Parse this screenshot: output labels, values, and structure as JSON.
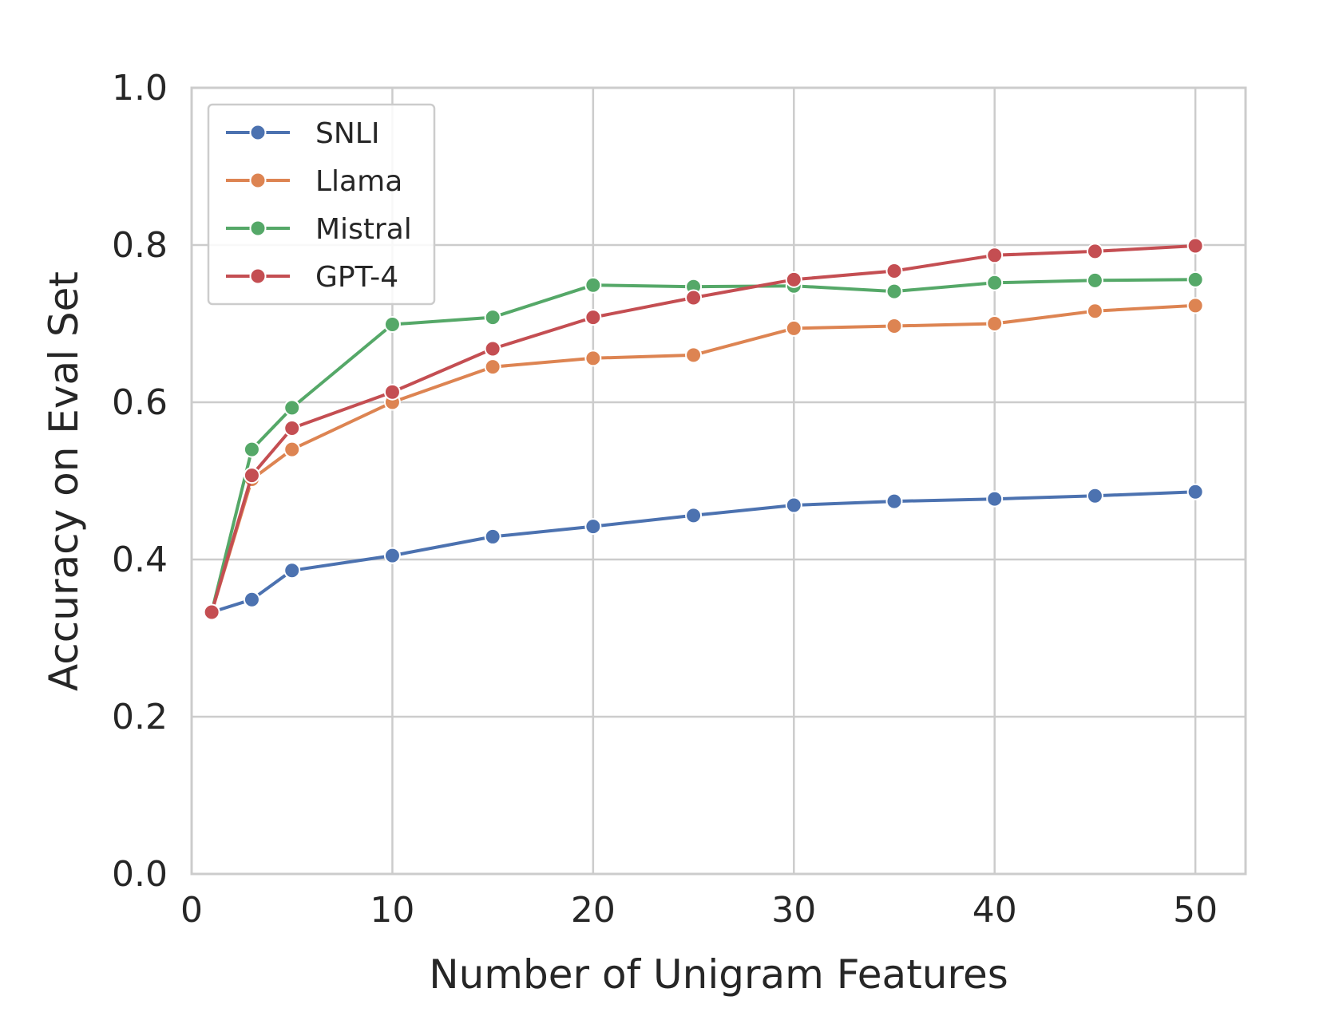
{
  "chart_data": {
    "type": "line",
    "xlabel": "Number of Unigram Features",
    "ylabel": "Accuracy on Eval Set",
    "xlim": [
      0,
      52.5
    ],
    "ylim": [
      0.0,
      1.0
    ],
    "xticks": [
      0,
      10,
      20,
      30,
      40,
      50
    ],
    "yticks": [
      0.0,
      0.2,
      0.4,
      0.6,
      0.8,
      1.0
    ],
    "grid": true,
    "legend_position": "top-left",
    "x": [
      1,
      3,
      5,
      10,
      15,
      20,
      25,
      30,
      35,
      40,
      45,
      50
    ],
    "series": [
      {
        "name": "SNLI",
        "color": "#4c72b0",
        "values": [
          0.333,
          0.349,
          0.386,
          0.405,
          0.429,
          0.442,
          0.456,
          0.469,
          0.474,
          0.477,
          0.481,
          0.486
        ]
      },
      {
        "name": "Llama",
        "color": "#dd8452",
        "values": [
          0.333,
          0.502,
          0.54,
          0.6,
          0.645,
          0.656,
          0.66,
          0.694,
          0.697,
          0.7,
          0.716,
          0.723
        ]
      },
      {
        "name": "Mistral",
        "color": "#55a868",
        "values": [
          0.333,
          0.54,
          0.593,
          0.699,
          0.708,
          0.749,
          0.747,
          0.748,
          0.741,
          0.752,
          0.755,
          0.756
        ]
      },
      {
        "name": "GPT-4",
        "color": "#c44e52",
        "values": [
          0.333,
          0.507,
          0.567,
          0.613,
          0.668,
          0.708,
          0.733,
          0.756,
          0.767,
          0.787,
          0.792,
          0.799
        ]
      }
    ]
  }
}
